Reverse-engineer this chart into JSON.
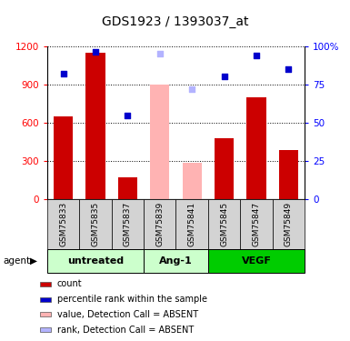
{
  "title": "GDS1923 / 1393037_at",
  "samples": [
    "GSM75833",
    "GSM75835",
    "GSM75837",
    "GSM75839",
    "GSM75841",
    "GSM75845",
    "GSM75847",
    "GSM75849"
  ],
  "groups": {
    "untreated": [
      "GSM75833",
      "GSM75835",
      "GSM75837"
    ],
    "Ang-1": [
      "GSM75839",
      "GSM75841"
    ],
    "VEGF": [
      "GSM75845",
      "GSM75847",
      "GSM75849"
    ]
  },
  "group_order": [
    "untreated",
    "Ang-1",
    "VEGF"
  ],
  "absent": [
    "GSM75839",
    "GSM75841"
  ],
  "count": {
    "GSM75833": 650,
    "GSM75835": 1150,
    "GSM75837": 175,
    "GSM75839": 900,
    "GSM75841": 290,
    "GSM75845": 480,
    "GSM75847": 800,
    "GSM75849": 390
  },
  "percentile": {
    "GSM75833": 82,
    "GSM75835": 96,
    "GSM75837": 55,
    "GSM75839": 95,
    "GSM75841": 72,
    "GSM75845": 80,
    "GSM75847": 94,
    "GSM75849": 85
  },
  "ylim_left": [
    0,
    1200
  ],
  "ylim_right": [
    0,
    100
  ],
  "yticks_left": [
    0,
    300,
    600,
    900,
    1200
  ],
  "yticks_right": [
    0,
    25,
    50,
    75,
    100
  ],
  "bar_color_present": "#cc0000",
  "bar_color_absent": "#ffb3b3",
  "dot_color_present": "#0000cc",
  "dot_color_absent": "#b3b3ff",
  "group_colors": {
    "untreated": "#ccffcc",
    "Ang-1": "#ccffcc",
    "VEGF": "#00cc00"
  },
  "legend_items": [
    {
      "label": "count",
      "color": "#cc0000"
    },
    {
      "label": "percentile rank within the sample",
      "color": "#0000cc"
    },
    {
      "label": "value, Detection Call = ABSENT",
      "color": "#ffb3b3"
    },
    {
      "label": "rank, Detection Call = ABSENT",
      "color": "#b3b3ff"
    }
  ]
}
